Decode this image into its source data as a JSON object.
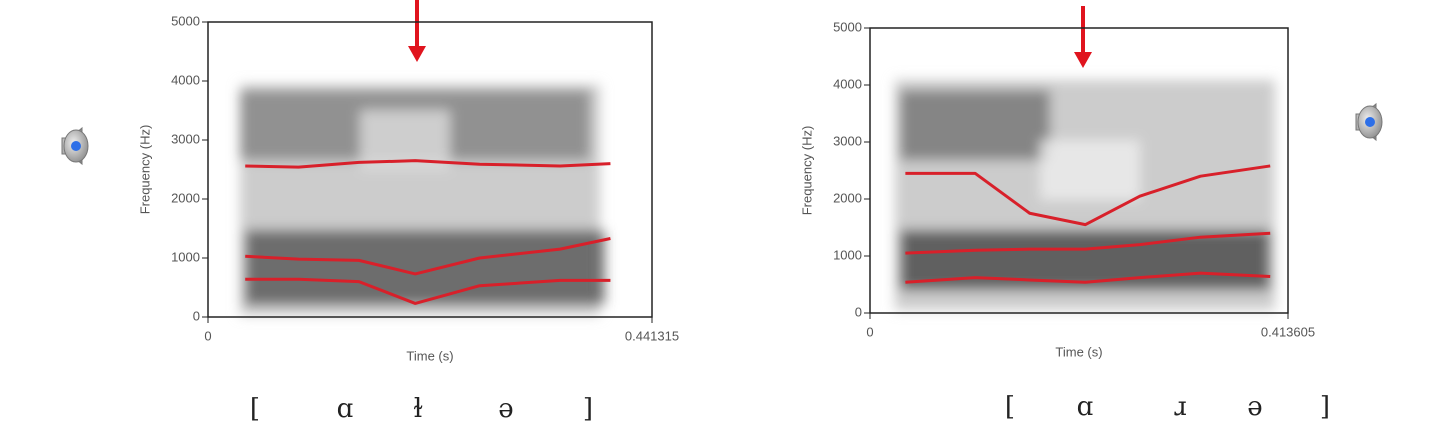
{
  "chart_data": [
    {
      "type": "line",
      "xlabel": "Time (s)",
      "ylabel": "Frequency (Hz)",
      "xlim": [
        0,
        0.441315
      ],
      "xticks": [
        0,
        0.441315
      ],
      "ylim": [
        0,
        5000
      ],
      "yticks": [
        0,
        1000,
        2000,
        3000,
        4000,
        5000
      ],
      "x": [
        0.037,
        0.09,
        0.15,
        0.206,
        0.27,
        0.35,
        0.4
      ],
      "series": [
        {
          "color": "#d8202a",
          "values": [
            640,
            640,
            600,
            230,
            530,
            620,
            620
          ]
        },
        {
          "color": "#d8202a",
          "values": [
            1030,
            980,
            960,
            730,
            1000,
            1150,
            1330
          ]
        },
        {
          "color": "#d8202a",
          "values": [
            2560,
            2540,
            2620,
            2650,
            2590,
            2560,
            2600
          ]
        }
      ],
      "transcription": [
        "[",
        "ɑ",
        "ɫ",
        "ə",
        "]"
      ]
    },
    {
      "type": "line",
      "xlabel": "Time (s)",
      "ylabel": "Frequency (Hz)",
      "xlim": [
        0,
        0.413605
      ],
      "xticks": [
        0,
        0.413605
      ],
      "ylim": [
        0,
        5000
      ],
      "yticks": [
        0,
        1000,
        2000,
        3000,
        4000,
        5000
      ],
      "x": [
        0.035,
        0.104,
        0.158,
        0.213,
        0.267,
        0.327,
        0.396
      ],
      "series": [
        {
          "color": "#d8202a",
          "values": [
            540,
            620,
            580,
            540,
            620,
            700,
            640
          ]
        },
        {
          "color": "#d8202a",
          "values": [
            1050,
            1100,
            1120,
            1120,
            1200,
            1330,
            1400
          ]
        },
        {
          "color": "#d8202a",
          "values": [
            2450,
            2450,
            1750,
            1550,
            2050,
            2400,
            2580
          ]
        }
      ],
      "transcription": [
        "[",
        "ɑ",
        "ɹ",
        "ə",
        "]"
      ]
    }
  ]
}
